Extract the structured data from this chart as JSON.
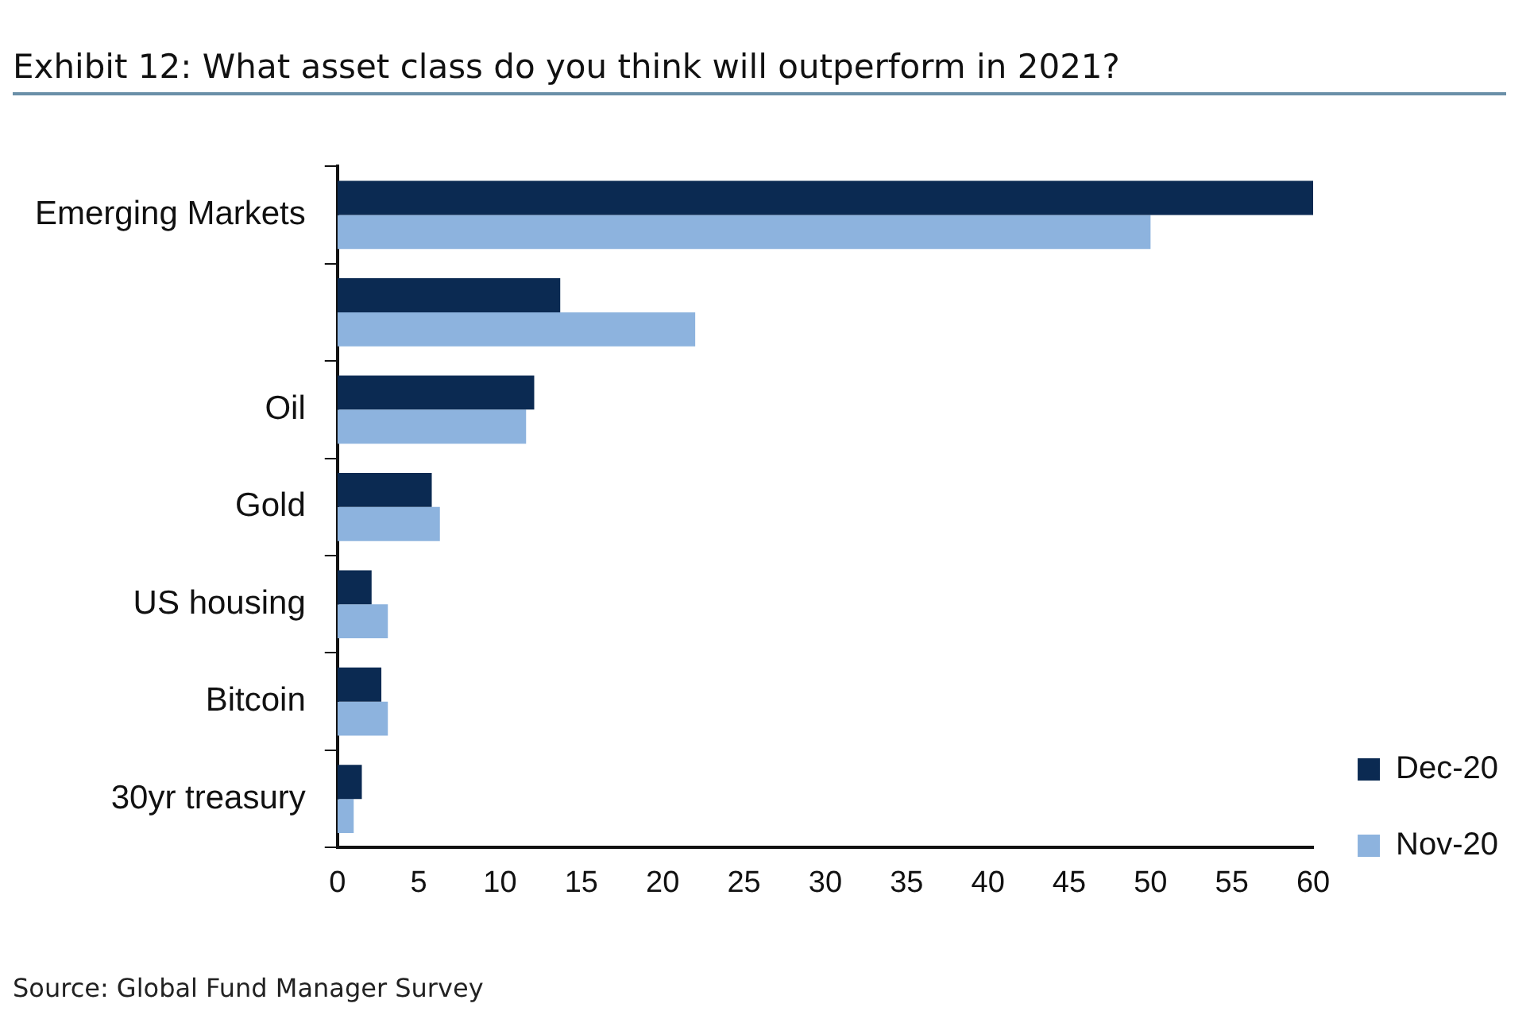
{
  "chart_data": {
    "type": "bar",
    "orientation": "horizontal",
    "title": "Exhibit 12: What asset class do you think will outperform in 2021?",
    "categories": [
      "Emerging Markets",
      null,
      "Oil",
      "Gold",
      "US housing",
      "Bitcoin",
      "30yr treasury"
    ],
    "series": [
      {
        "name": "Dec-20",
        "color": "#0b2a52",
        "values": [
          60,
          13.7,
          12.1,
          5.8,
          2.1,
          2.7,
          1.5
        ]
      },
      {
        "name": "Nov-20",
        "color": "#8db3de",
        "values": [
          50,
          22,
          11.6,
          6.3,
          3.1,
          3.1,
          1.0
        ]
      }
    ],
    "xlim": [
      0,
      60
    ],
    "xticks": [
      0,
      5,
      10,
      15,
      20,
      25,
      30,
      35,
      40,
      45,
      50,
      55,
      60
    ],
    "grid": false,
    "legend": "right",
    "annotations": [
      "Source: Global Fund Manager Survey"
    ]
  }
}
